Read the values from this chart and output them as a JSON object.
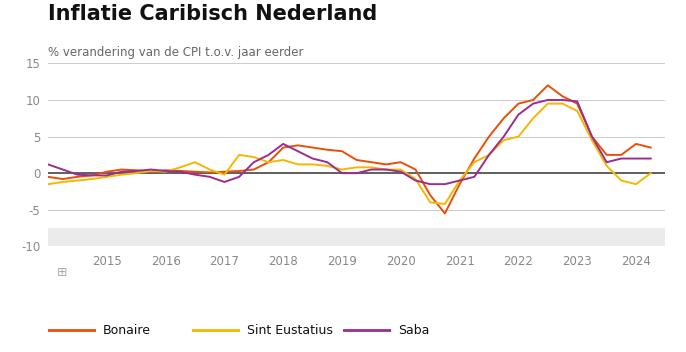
{
  "title": "Inflatie Caribisch Nederland",
  "subtitle": "% verandering van de CPI t.o.v. jaar eerder",
  "ylim": [
    -10,
    15
  ],
  "yticks": [
    -10,
    -5,
    0,
    5,
    10,
    15
  ],
  "background_color": "#ffffff",
  "footer_bg": "#eeeeee",
  "series": {
    "Bonaire": {
      "color": "#e8500a",
      "x": [
        2014.0,
        2014.25,
        2014.5,
        2014.75,
        2015.0,
        2015.25,
        2015.5,
        2015.75,
        2016.0,
        2016.25,
        2016.5,
        2016.75,
        2017.0,
        2017.25,
        2017.5,
        2017.75,
        2018.0,
        2018.25,
        2018.5,
        2018.75,
        2019.0,
        2019.25,
        2019.5,
        2019.75,
        2020.0,
        2020.25,
        2020.5,
        2020.75,
        2021.0,
        2021.25,
        2021.5,
        2021.75,
        2022.0,
        2022.25,
        2022.5,
        2022.75,
        2023.0,
        2023.25,
        2023.5,
        2023.75,
        2024.0,
        2024.25
      ],
      "y": [
        -0.5,
        -0.8,
        -0.5,
        -0.3,
        0.2,
        0.5,
        0.4,
        0.2,
        0.4,
        0.3,
        0.2,
        0.1,
        0.2,
        0.3,
        0.5,
        1.5,
        3.5,
        3.8,
        3.5,
        3.2,
        3.0,
        1.8,
        1.5,
        1.2,
        1.5,
        0.5,
        -3.0,
        -5.5,
        -1.5,
        2.0,
        5.0,
        7.5,
        9.5,
        10.0,
        12.0,
        10.5,
        9.5,
        5.0,
        2.5,
        2.5,
        4.0,
        3.5
      ]
    },
    "Sint Eustatius": {
      "color": "#f5b800",
      "x": [
        2014.0,
        2014.25,
        2014.5,
        2014.75,
        2015.0,
        2015.25,
        2015.5,
        2015.75,
        2016.0,
        2016.25,
        2016.5,
        2016.75,
        2017.0,
        2017.25,
        2017.5,
        2017.75,
        2018.0,
        2018.25,
        2018.5,
        2018.75,
        2019.0,
        2019.25,
        2019.5,
        2019.75,
        2020.0,
        2020.25,
        2020.5,
        2020.75,
        2021.0,
        2021.25,
        2021.5,
        2021.75,
        2022.0,
        2022.25,
        2022.5,
        2022.75,
        2023.0,
        2023.25,
        2023.5,
        2023.75,
        2024.0,
        2024.25
      ],
      "y": [
        -1.5,
        -1.2,
        -1.0,
        -0.8,
        -0.5,
        -0.2,
        0.0,
        0.3,
        0.2,
        0.8,
        1.5,
        0.5,
        -0.2,
        2.5,
        2.2,
        1.5,
        1.8,
        1.2,
        1.2,
        1.0,
        0.5,
        0.8,
        0.8,
        0.5,
        0.5,
        -0.8,
        -4.0,
        -4.2,
        -1.0,
        1.5,
        2.5,
        4.5,
        5.0,
        7.5,
        9.5,
        9.5,
        8.5,
        4.5,
        1.0,
        -1.0,
        -1.5,
        0.0
      ]
    },
    "Saba": {
      "color": "#9b2d8e",
      "x": [
        2014.0,
        2014.25,
        2014.5,
        2014.75,
        2015.0,
        2015.25,
        2015.5,
        2015.75,
        2016.0,
        2016.25,
        2016.5,
        2016.75,
        2017.0,
        2017.25,
        2017.5,
        2017.75,
        2018.0,
        2018.25,
        2018.5,
        2018.75,
        2019.0,
        2019.25,
        2019.5,
        2019.75,
        2020.0,
        2020.25,
        2020.5,
        2020.75,
        2021.0,
        2021.25,
        2021.5,
        2021.75,
        2022.0,
        2022.25,
        2022.5,
        2022.75,
        2023.0,
        2023.25,
        2023.5,
        2023.75,
        2024.0,
        2024.25
      ],
      "y": [
        1.2,
        0.5,
        -0.2,
        -0.3,
        -0.3,
        0.2,
        0.3,
        0.5,
        0.3,
        0.2,
        -0.2,
        -0.5,
        -1.2,
        -0.5,
        1.5,
        2.5,
        4.0,
        3.0,
        2.0,
        1.5,
        0.0,
        0.0,
        0.5,
        0.5,
        0.2,
        -1.0,
        -1.5,
        -1.5,
        -1.0,
        -0.5,
        2.5,
        5.0,
        8.0,
        9.5,
        10.0,
        10.0,
        9.8,
        5.0,
        1.5,
        2.0,
        2.0,
        2.0
      ]
    }
  },
  "xticks": [
    2015,
    2016,
    2017,
    2018,
    2019,
    2020,
    2021,
    2022,
    2023,
    2024
  ],
  "xlim": [
    2014.0,
    2024.5
  ],
  "zero_line_color": "#555555",
  "grid_color": "#cccccc",
  "title_fontsize": 15,
  "subtitle_fontsize": 8.5,
  "legend_fontsize": 9,
  "tick_fontsize": 8.5,
  "tick_color": "#888888"
}
